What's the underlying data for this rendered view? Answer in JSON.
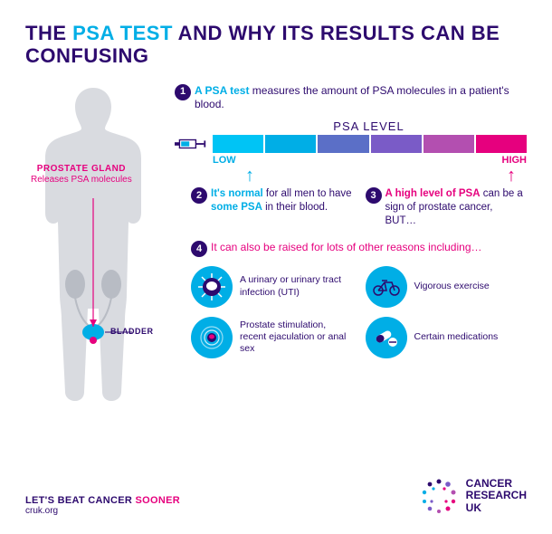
{
  "title_pre": "THE ",
  "title_hl": "PSA TEST",
  "title_post": " AND WHY ITS RESULTS CAN BE CONFUSING",
  "gland": {
    "label": "PROSTATE GLAND",
    "sub": "Releases PSA molecules"
  },
  "bladder": "BLADDER",
  "step1": {
    "n": "1",
    "bold": "A PSA test",
    "rest": " measures the amount of PSA molecules in a patient's blood."
  },
  "psa_label": "PSA LEVEL",
  "low": "LOW",
  "high": "HIGH",
  "gradient": [
    "#00c4f5",
    "#00aee6",
    "#5b6fc7",
    "#7a5bc7",
    "#b34fb0",
    "#e6007e"
  ],
  "step2": {
    "n": "2",
    "p1": "It's normal",
    "p2": " for all men to have ",
    "p3": "some PSA",
    "p4": " in their blood."
  },
  "step3": {
    "n": "3",
    "p1": "A high level of PSA",
    "p2": " can be a sign of prostate cancer, BUT…"
  },
  "step4": {
    "n": "4",
    "text": "It can also be raised for lots of other reasons including…"
  },
  "reasons": [
    {
      "text": "A urinary or urinary tract infection (UTI)"
    },
    {
      "text": "Vigorous exercise"
    },
    {
      "text": "Prostate stimulation, recent ejaculation or anal sex"
    },
    {
      "text": "Certain medications"
    }
  ],
  "tagline_pre": "LET'S BEAT CANCER ",
  "tagline_hl": "SOONER",
  "url": "cruk.org",
  "logo1": "CANCER",
  "logo2": "RESEARCH",
  "logo3": "UK"
}
